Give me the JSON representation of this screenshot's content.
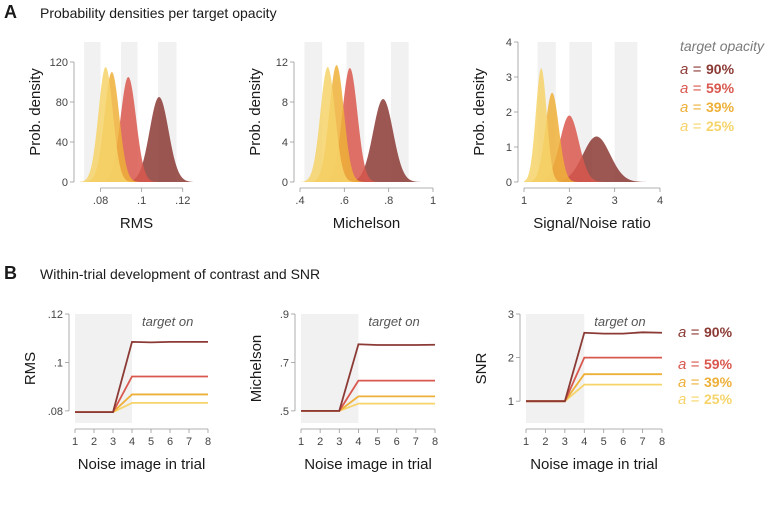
{
  "panel_a": {
    "letter": "A",
    "title": "Probability densities per target opacity"
  },
  "panel_b": {
    "letter": "B",
    "title": "Within-trial development of contrast and SNR"
  },
  "legend": {
    "title": "target opacity",
    "symbol": "a =",
    "entries": [
      {
        "label": "90%",
        "color": "#8b3a35"
      },
      {
        "label": "59%",
        "color": "#d9584e"
      },
      {
        "label": "39%",
        "color": "#eeb038"
      },
      {
        "label": "25%",
        "color": "#f6d46a"
      }
    ]
  },
  "colors": {
    "op90": "#8b3a35",
    "op59": "#d9584e",
    "op39": "#eeb038",
    "op25": "#f6d46a",
    "band": "#f1f1f1"
  },
  "chart_data": [
    {
      "id": "a-rms",
      "type": "area",
      "title": "",
      "xlabel": "RMS",
      "ylabel": "Prob. density",
      "xlim": [
        0.07,
        0.125
      ],
      "ylim": [
        0,
        140
      ],
      "xticks": [
        0.08,
        0.1,
        0.12
      ],
      "xtick_labels": [
        ".08",
        ".1",
        ".12"
      ],
      "yticks": [
        0,
        40,
        80,
        120
      ],
      "ytick_labels": [
        "0",
        "40",
        "80",
        "120"
      ],
      "bands": [
        [
          0.072,
          0.08
        ],
        [
          0.09,
          0.098
        ],
        [
          0.108,
          0.117
        ]
      ],
      "series": [
        {
          "name": "25%",
          "mean": 0.0825,
          "peak": 115,
          "sd": 0.0035
        },
        {
          "name": "39%",
          "mean": 0.0855,
          "peak": 110,
          "sd": 0.0036
        },
        {
          "name": "59%",
          "mean": 0.0935,
          "peak": 105,
          "sd": 0.0038
        },
        {
          "name": "90%",
          "mean": 0.1085,
          "peak": 85,
          "sd": 0.0046
        }
      ]
    },
    {
      "id": "a-mich",
      "type": "area",
      "title": "",
      "xlabel": "Michelson",
      "ylabel": "Prob. density",
      "xlim": [
        0.4,
        1.0
      ],
      "ylim": [
        0,
        14
      ],
      "xticks": [
        0.4,
        0.6,
        0.8,
        1.0
      ],
      "xtick_labels": [
        ".4",
        ".6",
        ".8",
        "1"
      ],
      "yticks": [
        0,
        4,
        8,
        12
      ],
      "ytick_labels": [
        "0",
        "4",
        "8",
        "12"
      ],
      "bands": [
        [
          0.42,
          0.5
        ],
        [
          0.61,
          0.69
        ],
        [
          0.81,
          0.89
        ]
      ],
      "series": [
        {
          "name": "25%",
          "mean": 0.525,
          "peak": 11.5,
          "sd": 0.033
        },
        {
          "name": "39%",
          "mean": 0.565,
          "peak": 11.7,
          "sd": 0.033
        },
        {
          "name": "59%",
          "mean": 0.625,
          "peak": 11.4,
          "sd": 0.034
        },
        {
          "name": "90%",
          "mean": 0.775,
          "peak": 8.3,
          "sd": 0.045
        }
      ]
    },
    {
      "id": "a-snr",
      "type": "area",
      "title": "",
      "xlabel": "Signal/Noise ratio",
      "ylabel": "Prob. density",
      "xlim": [
        1,
        4
      ],
      "ylim": [
        0,
        4
      ],
      "xticks": [
        1,
        2,
        3,
        4
      ],
      "xtick_labels": [
        "1",
        "2",
        "3",
        "4"
      ],
      "yticks": [
        0,
        1,
        2,
        3,
        4
      ],
      "ytick_labels": [
        "0",
        "1",
        "2",
        "3",
        "4"
      ],
      "bands": [
        [
          1.3,
          1.7
        ],
        [
          2.0,
          2.5
        ],
        [
          3.0,
          3.5
        ]
      ],
      "series": [
        {
          "name": "25%",
          "mean": 1.38,
          "peak": 3.25,
          "sd": 0.12
        },
        {
          "name": "39%",
          "mean": 1.62,
          "peak": 2.55,
          "sd": 0.15
        },
        {
          "name": "59%",
          "mean": 2.0,
          "peak": 1.9,
          "sd": 0.21
        },
        {
          "name": "90%",
          "mean": 2.6,
          "peak": 1.3,
          "sd": 0.3
        }
      ]
    },
    {
      "id": "b-rms",
      "type": "line",
      "title": "",
      "xlabel": "Noise image in trial",
      "ylabel": "RMS",
      "annotation": "target on",
      "shade_x": [
        1,
        4
      ],
      "xlim": [
        1,
        8
      ],
      "ylim": [
        0.075,
        0.12
      ],
      "x": [
        1,
        2,
        3,
        4,
        5,
        6,
        7,
        8
      ],
      "xticks": [
        1,
        2,
        3,
        4,
        5,
        6,
        7,
        8
      ],
      "xtick_labels": [
        "1",
        "2",
        "3",
        "4",
        "5",
        "6",
        "7",
        "8"
      ],
      "yticks": [
        0.08,
        0.1,
        0.12
      ],
      "ytick_labels": [
        ".08",
        ".1",
        ".12"
      ],
      "series": [
        {
          "name": "25%",
          "values": [
            0.0795,
            0.0795,
            0.0795,
            0.0833,
            0.0833,
            0.0833,
            0.0833,
            0.0833
          ]
        },
        {
          "name": "39%",
          "values": [
            0.0795,
            0.0795,
            0.0795,
            0.0868,
            0.0868,
            0.0868,
            0.0868,
            0.0868
          ]
        },
        {
          "name": "59%",
          "values": [
            0.0795,
            0.0795,
            0.0795,
            0.0942,
            0.0942,
            0.0942,
            0.0942,
            0.0942
          ]
        },
        {
          "name": "90%",
          "values": [
            0.0795,
            0.0795,
            0.0795,
            0.1085,
            0.1083,
            0.1085,
            0.1085,
            0.1085
          ]
        }
      ]
    },
    {
      "id": "b-mich",
      "type": "line",
      "title": "",
      "xlabel": "Noise image in trial",
      "ylabel": "Michelson",
      "annotation": "target on",
      "shade_x": [
        1,
        4
      ],
      "xlim": [
        1,
        8
      ],
      "ylim": [
        0.45,
        0.9
      ],
      "x": [
        1,
        2,
        3,
        4,
        5,
        6,
        7,
        8
      ],
      "xticks": [
        1,
        2,
        3,
        4,
        5,
        6,
        7,
        8
      ],
      "xtick_labels": [
        "1",
        "2",
        "3",
        "4",
        "5",
        "6",
        "7",
        "8"
      ],
      "yticks": [
        0.5,
        0.7,
        0.9
      ],
      "ytick_labels": [
        ".5",
        ".7",
        ".9"
      ],
      "series": [
        {
          "name": "25%",
          "values": [
            0.5,
            0.5,
            0.5,
            0.53,
            0.53,
            0.53,
            0.53,
            0.53
          ]
        },
        {
          "name": "39%",
          "values": [
            0.5,
            0.5,
            0.5,
            0.56,
            0.56,
            0.56,
            0.56,
            0.56
          ]
        },
        {
          "name": "59%",
          "values": [
            0.5,
            0.5,
            0.5,
            0.625,
            0.625,
            0.625,
            0.625,
            0.625
          ]
        },
        {
          "name": "90%",
          "values": [
            0.5,
            0.5,
            0.5,
            0.775,
            0.772,
            0.772,
            0.772,
            0.773
          ]
        }
      ]
    },
    {
      "id": "b-snr",
      "type": "line",
      "title": "",
      "xlabel": "Noise image in trial",
      "ylabel": "SNR",
      "annotation": "target on",
      "shade_x": [
        1,
        4
      ],
      "xlim": [
        1,
        8
      ],
      "ylim": [
        0.5,
        3
      ],
      "x": [
        1,
        2,
        3,
        4,
        5,
        6,
        7,
        8
      ],
      "xticks": [
        1,
        2,
        3,
        4,
        5,
        6,
        7,
        8
      ],
      "xtick_labels": [
        "1",
        "2",
        "3",
        "4",
        "5",
        "6",
        "7",
        "8"
      ],
      "yticks": [
        1,
        2,
        3
      ],
      "ytick_labels": [
        "1",
        "2",
        "3"
      ],
      "series": [
        {
          "name": "25%",
          "values": [
            1,
            1,
            1,
            1.38,
            1.38,
            1.38,
            1.38,
            1.38
          ]
        },
        {
          "name": "39%",
          "values": [
            1,
            1,
            1,
            1.62,
            1.62,
            1.62,
            1.62,
            1.62
          ]
        },
        {
          "name": "59%",
          "values": [
            1,
            1,
            1,
            2.0,
            2.0,
            2.0,
            2.0,
            2.0
          ]
        },
        {
          "name": "90%",
          "values": [
            1,
            1,
            1,
            2.57,
            2.55,
            2.55,
            2.58,
            2.57
          ]
        }
      ]
    }
  ]
}
